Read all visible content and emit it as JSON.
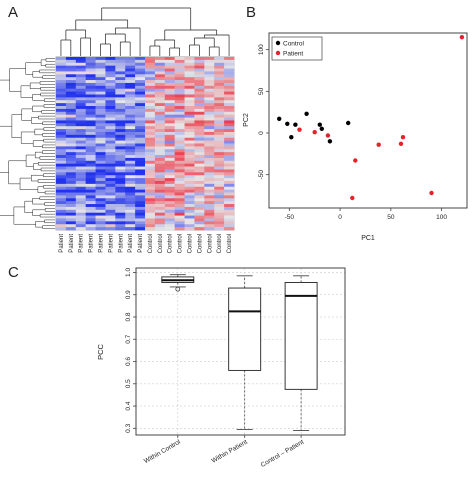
{
  "panels": {
    "a": "A",
    "b": "B",
    "c": "C"
  },
  "chart_data": [
    {
      "type": "heatmap",
      "column_labels": [
        "Patient",
        "Patient",
        "Patient",
        "Patient",
        "Patient",
        "Patient",
        "Patient",
        "Patient",
        "Patient",
        "Control",
        "Control",
        "Control",
        "Control",
        "Control",
        "Control",
        "Control",
        "Control",
        "Control"
      ],
      "colors": {
        "low": "#2233ee",
        "mid": "#e6e6e6",
        "high": "#ee2233"
      }
    },
    {
      "type": "scatter",
      "xlabel": "PC1",
      "ylabel": "PC2",
      "xlim": [
        -70,
        125
      ],
      "ylim": [
        -90,
        120
      ],
      "x_ticks": [
        -50,
        0,
        50,
        100
      ],
      "y_ticks": [
        -50,
        0,
        50,
        100
      ],
      "legend_position": "top-left",
      "series": [
        {
          "name": "Control",
          "color": "#000000",
          "points": [
            [
              -60,
              17
            ],
            [
              -52,
              11
            ],
            [
              -48,
              -5
            ],
            [
              -44,
              10
            ],
            [
              -33,
              23
            ],
            [
              -20,
              10
            ],
            [
              -18,
              5
            ],
            [
              -10,
              -10
            ],
            [
              8,
              12
            ]
          ]
        },
        {
          "name": "Patient",
          "color": "#e8202a",
          "points": [
            [
              -40,
              4
            ],
            [
              -25,
              1
            ],
            [
              -12,
              -3
            ],
            [
              15,
              -33
            ],
            [
              12,
              -78
            ],
            [
              38,
              -14
            ],
            [
              62,
              -5
            ],
            [
              60,
              -13
            ],
            [
              90,
              -72
            ],
            [
              120,
              115
            ]
          ]
        }
      ]
    },
    {
      "type": "box",
      "ylabel": "PCC",
      "ylim": [
        0.27,
        1.02
      ],
      "y_ticks": [
        "0.3",
        "0.4",
        "0.5",
        "0.6",
        "0.7",
        "0.8",
        "0.9",
        "1.0"
      ],
      "grid": true,
      "categories": [
        "Within Control",
        "Within Patient",
        "Control – Patient"
      ],
      "boxes": [
        {
          "min": 0.935,
          "q1": 0.955,
          "median": 0.965,
          "q3": 0.98,
          "max": 0.99,
          "outliers": [
            0.925
          ]
        },
        {
          "min": 0.295,
          "q1": 0.56,
          "median": 0.825,
          "q3": 0.93,
          "max": 0.985,
          "outliers": []
        },
        {
          "min": 0.29,
          "q1": 0.475,
          "median": 0.895,
          "q3": 0.955,
          "max": 0.985,
          "outliers": []
        }
      ]
    }
  ]
}
